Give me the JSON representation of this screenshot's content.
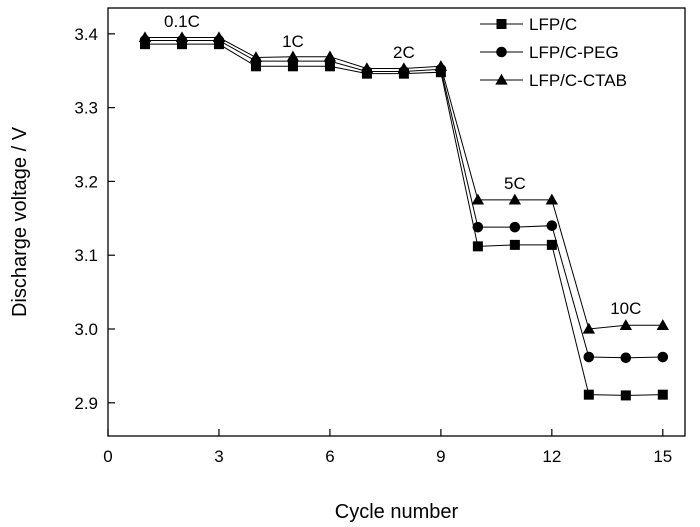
{
  "chart_data": {
    "type": "line",
    "xlabel": "Cycle number",
    "ylabel": "Discharge voltage / V",
    "xlim": [
      0,
      15.6
    ],
    "ylim": [
      2.855,
      3.435
    ],
    "xticks": [
      0,
      3,
      6,
      9,
      12,
      15
    ],
    "yticks": [
      2.9,
      3.0,
      3.1,
      3.2,
      3.3,
      3.4
    ],
    "yticks_labels": [
      "2.9",
      "3.0",
      "3.1",
      "3.2",
      "3.3",
      "3.4"
    ],
    "grid": false,
    "legend_placement": "top-right",
    "x": [
      1,
      2,
      3,
      4,
      5,
      6,
      7,
      8,
      9,
      10,
      11,
      12,
      13,
      14,
      15
    ],
    "series": [
      {
        "name": "LFP/C",
        "marker": "square",
        "values": [
          3.386,
          3.386,
          3.386,
          3.356,
          3.356,
          3.356,
          3.346,
          3.346,
          3.348,
          3.112,
          3.114,
          3.114,
          2.911,
          2.91,
          2.911
        ]
      },
      {
        "name": "LFP/C-PEG",
        "marker": "circle",
        "values": [
          3.391,
          3.391,
          3.391,
          3.363,
          3.363,
          3.363,
          3.349,
          3.349,
          3.352,
          3.138,
          3.138,
          3.14,
          2.962,
          2.961,
          2.962
        ]
      },
      {
        "name": "LFP/C-CTAB",
        "marker": "triangle",
        "values": [
          3.395,
          3.395,
          3.395,
          3.368,
          3.369,
          3.369,
          3.353,
          3.353,
          3.356,
          3.175,
          3.175,
          3.175,
          3.0,
          3.005,
          3.005
        ]
      }
    ],
    "annotations": [
      {
        "text": "0.1C",
        "x": 2,
        "y": 3.409
      },
      {
        "text": "1C",
        "x": 5,
        "y": 3.382
      },
      {
        "text": "2C",
        "x": 8,
        "y": 3.367
      },
      {
        "text": "5C",
        "x": 11,
        "y": 3.19
      },
      {
        "text": "10C",
        "x": 14,
        "y": 3.02
      }
    ]
  },
  "colors": {
    "series_stroke": "#000000",
    "axes": "#000000",
    "background": "#ffffff"
  }
}
